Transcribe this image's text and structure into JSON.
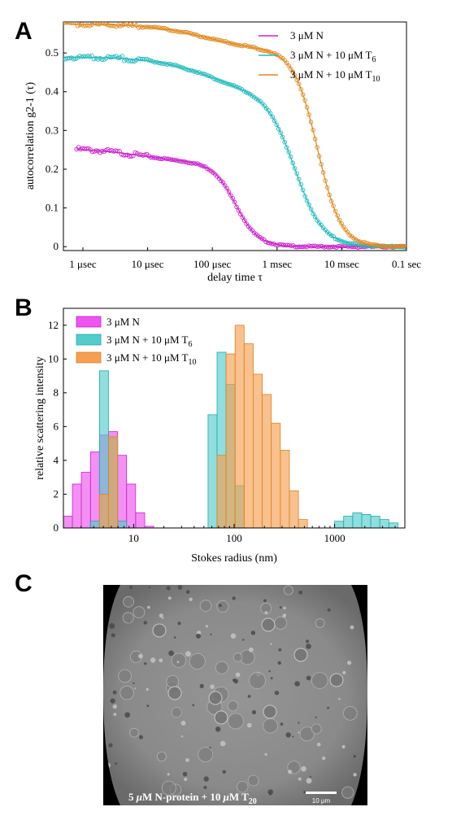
{
  "panel_labels": [
    "A",
    "B",
    "C"
  ],
  "chart_data": [
    {
      "type": "scatter",
      "panel": "A",
      "xlabel": "delay time τ",
      "ylabel": "autocorrelation g2-1 (τ)",
      "xscale": "log",
      "xlim": [
        0.5,
        100000
      ],
      "ylim": [
        -0.01,
        0.58
      ],
      "x_ticks": [
        1,
        10,
        100,
        1000,
        10000,
        100000
      ],
      "x_tick_labels": [
        "1 μsec",
        "10 μsec",
        "100 μsec",
        "1 msec",
        "10 msec",
        "0.1 sec"
      ],
      "y_ticks": [
        0,
        0.1,
        0.2,
        0.3,
        0.4,
        0.5
      ],
      "y_tick_labels": [
        "0",
        "0.1",
        "0.2",
        "0.3",
        "0.4",
        "0.5"
      ],
      "legend_position": "top-right",
      "series": [
        {
          "name": "3 μM N",
          "legend_sub": "",
          "color": "#cc22cc",
          "x_start": 0.8,
          "x_end": 100000,
          "curve": {
            "y0": 0.255,
            "A1": 0.04,
            "tau1": 8,
            "A2": 0.215,
            "tau2": 230,
            "width": 0.4
          }
        },
        {
          "name": "3 μM N + 10 μM T",
          "legend_sub": "6",
          "color": "#22bbbb",
          "x_start": 0.5,
          "x_end": 100000,
          "curve": {
            "y0": 0.49,
            "A1": 0.1,
            "tau1": 90,
            "A2": 0.39,
            "tau2": 1900,
            "width": 0.5
          }
        },
        {
          "name": "3 μM N + 10 μM T",
          "legend_sub": "10",
          "color": "#e08a20",
          "x_start": 0.5,
          "x_end": 100000,
          "curve": {
            "y0": 0.575,
            "A1": 0.07,
            "tau1": 80,
            "A2": 0.505,
            "tau2": 4200,
            "width": 0.42
          }
        }
      ]
    },
    {
      "type": "bar",
      "panel": "B",
      "xlabel": "Stokes radius (nm)",
      "ylabel": "relative scattering intensity",
      "xscale": "log",
      "xlim": [
        2,
        5000
      ],
      "ylim": [
        0,
        13
      ],
      "x_ticks": [
        10,
        100,
        1000
      ],
      "x_tick_labels": [
        "10",
        "100",
        "1000"
      ],
      "y_ticks": [
        0,
        2,
        4,
        6,
        8,
        10,
        12
      ],
      "y_tick_labels": [
        "0",
        "2",
        "4",
        "6",
        "8",
        "10",
        "12"
      ],
      "legend_position": "top-left",
      "bin_edges": [
        2.0,
        2.46,
        3.02,
        3.72,
        4.57,
        5.62,
        6.92,
        8.51,
        10.47,
        12.88,
        15.85,
        19.5,
        24.0,
        29.5,
        36.3,
        44.7,
        55.0,
        67.6,
        83.2,
        102.3,
        125.9,
        154.9,
        190.5,
        234.4,
        288.4,
        354.8,
        436.5,
        537.0,
        660.7,
        812.8,
        1000.0,
        1230.3,
        1513.6,
        1862.1,
        2290.9,
        2818.4,
        3467.4,
        4265.8
      ],
      "series": [
        {
          "name": "3 μM N",
          "legend_sub": "",
          "fill": "#ee55ee",
          "stroke": "#cc22cc",
          "values": [
            0.7,
            2.6,
            3.3,
            4.5,
            5.5,
            5.7,
            4.3,
            2.6,
            0.9,
            0.1,
            0,
            0,
            0,
            0,
            0,
            0,
            0,
            0,
            0,
            0,
            0,
            0,
            0,
            0,
            0,
            0,
            0,
            0,
            0,
            0,
            0,
            0,
            0,
            0,
            0,
            0,
            0
          ]
        },
        {
          "name": "3 μM N + 10 μM T",
          "legend_sub": "6",
          "fill": "#55cccc",
          "stroke": "#22aaaa",
          "values": [
            0,
            0,
            0,
            0.4,
            9.3,
            5.3,
            0.4,
            0,
            0,
            0,
            0,
            0,
            0,
            0,
            0,
            0,
            6.7,
            10.4,
            8.5,
            2.5,
            0,
            0,
            0,
            0,
            0,
            0,
            0,
            0,
            0,
            0,
            0.4,
            0.7,
            0.9,
            0.8,
            0.7,
            0.5,
            0.3
          ]
        },
        {
          "name": "3 μM N + 10 μM T",
          "legend_sub": "10",
          "fill": "#f5a050",
          "stroke": "#dd8422",
          "values": [
            0,
            0,
            0,
            0,
            2.0,
            5.4,
            0,
            0,
            0,
            0,
            0,
            0,
            0,
            0,
            0,
            0,
            0,
            4.3,
            10.3,
            12.0,
            10.9,
            9.1,
            7.9,
            6.2,
            4.6,
            2.2,
            0.5,
            0,
            0,
            0,
            0,
            0,
            0,
            0,
            0,
            0,
            0
          ]
        }
      ]
    }
  ],
  "panel_c": {
    "caption_parts": [
      "5 ",
      "μ",
      "M N-protein + 10 ",
      "μ",
      "M T",
      "20"
    ],
    "scalebar_label": "10 μm",
    "bg_color": "#8a8a8a"
  }
}
